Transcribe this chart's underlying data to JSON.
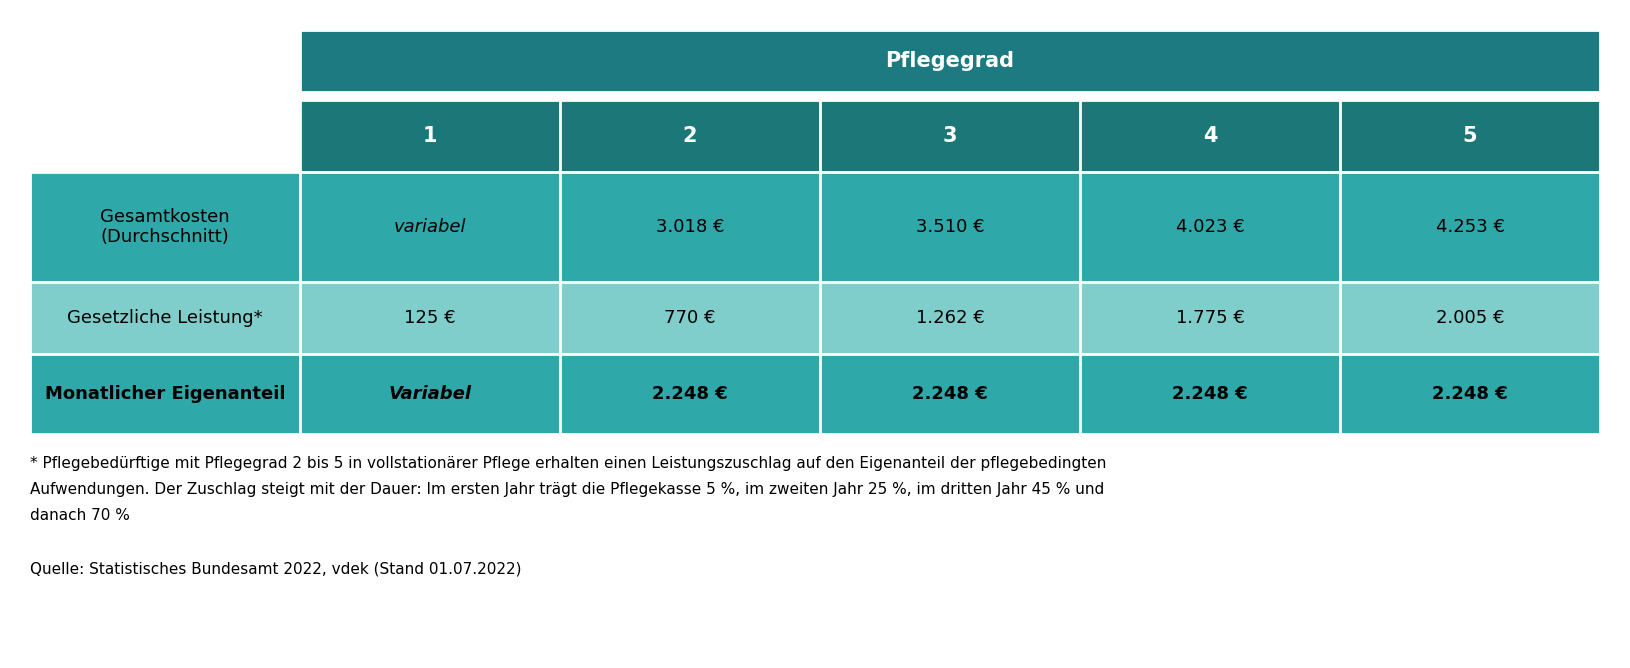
{
  "title_header": "Pflegegrad",
  "col_headers": [
    "1",
    "2",
    "3",
    "4",
    "5"
  ],
  "row_labels": [
    "Gesamtkosten\n(Durchschnitt)",
    "Gesetzliche Leistung*",
    "Monatlicher Eigenanteil"
  ],
  "row_labels_bold": [
    false,
    false,
    true
  ],
  "cell_data": [
    [
      "variabel",
      "3.018 €",
      "3.510 €",
      "4.023 €",
      "4.253 €"
    ],
    [
      "125 €",
      "770 €",
      "1.262 €",
      "1.775 €",
      "2.005 €"
    ],
    [
      "Variabel",
      "2.248 €",
      "2.248 €",
      "2.248 €",
      "2.248 €"
    ]
  ],
  "cell_italic_row0": [
    true,
    false,
    false,
    false,
    false
  ],
  "cell_bold_row2": [
    true,
    true,
    true,
    true,
    true
  ],
  "footnote_lines": [
    "* Pflegebedürftige mit Pflegegrad 2 bis 5 in vollstationärer Pflege erhalten einen Leistungszuschlag auf den Eigenanteil der pflegebedingten",
    "Aufwendungen. Der Zuschlag steigt mit der Dauer: Im ersten Jahr trägt die Pflegekasse 5 %, im zweiten Jahr 25 %, im dritten Jahr 45 % und",
    "danach 70 %"
  ],
  "source": "Quelle: Statistisches Bundesamt 2022, vdek (Stand 01.07.2022)",
  "color_header_dark": "#1c7a80",
  "color_subheader": "#1c7878",
  "color_row0": "#2ea8a8",
  "color_row1": "#80cecc",
  "color_row2": "#2ea8a8",
  "color_text_header": "#ffffff",
  "color_text_dark": "#000000",
  "bg_color": "#ffffff",
  "fig_width": 16.3,
  "fig_height": 6.68,
  "dpi": 100
}
